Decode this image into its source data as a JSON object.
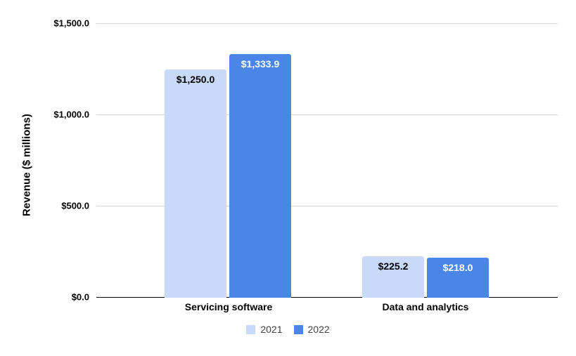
{
  "chart_data": {
    "type": "bar",
    "title": "",
    "xlabel": "",
    "ylabel": "Revenue ($ millions)",
    "categories": [
      "Servicing software",
      "Data and analytics"
    ],
    "series": [
      {
        "name": "2021",
        "color": "#c9daf8",
        "label_color": "#000000",
        "values": [
          1250.0,
          225.2
        ],
        "labels": [
          "$1,250.0",
          "$225.2"
        ]
      },
      {
        "name": "2022",
        "color": "#4a86e8",
        "label_color": "#ffffff",
        "values": [
          1333.9,
          218.0
        ],
        "labels": [
          "$1,333.9",
          "$218.0"
        ]
      }
    ],
    "ylim": [
      0,
      1500
    ],
    "yticks": [
      {
        "value": 1500,
        "label": "$1,500.0"
      },
      {
        "value": 1000,
        "label": "$1,000.0"
      },
      {
        "value": 500,
        "label": "$500.0"
      },
      {
        "value": 0,
        "label": "$0.0"
      }
    ],
    "grid": true,
    "gridline_color": "#d6d6d6",
    "axis_line_color": "#000000",
    "background_color": "#ffffff",
    "legend_position": "bottom"
  }
}
